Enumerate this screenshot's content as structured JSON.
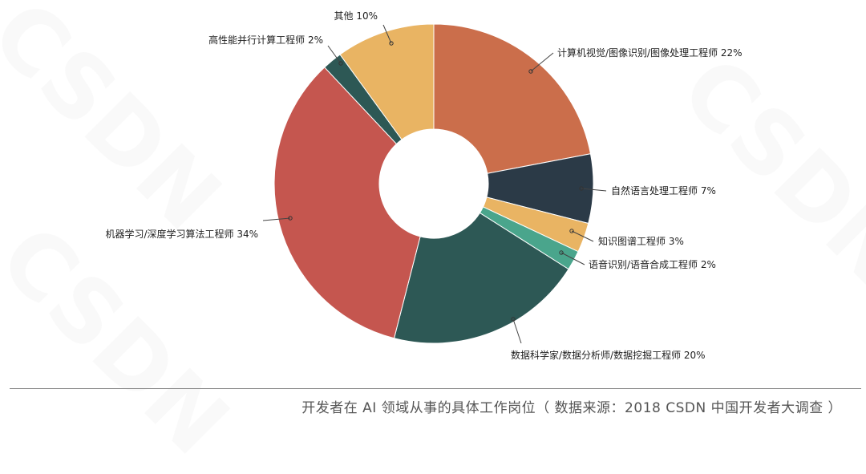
{
  "chart_data": {
    "type": "pie",
    "categories": [
      "计算机视觉/图像识别/图像处理工程师",
      "自然语言处理工程师",
      "知识图谱工程师",
      "语音识别/语音合成工程师",
      "数据科学家/数据分析师/数据挖掘工程师",
      "机器学习/深度学习算法工程师",
      "高性能并行计算工程师",
      "其他"
    ],
    "values": [
      22,
      7,
      3,
      2,
      20,
      34,
      2,
      10
    ],
    "colors": [
      "#cb6e4b",
      "#2b3a47",
      "#e9b463",
      "#4aa58c",
      "#2d5855",
      "#c5564f",
      "#2d5855",
      "#e9b463"
    ],
    "labels": [
      "计算机视觉/图像识别/图像处理工程师  22%",
      "自然语言处理工程师  7%",
      "知识图谱工程师  3%",
      "语音识别/语音合成工程师  2%",
      "数据科学家/数据分析师/数据挖掘工程师  20%",
      "机器学习/深度学习算法工程师  34%",
      "高性能并行计算工程师  2%",
      "其他  10%"
    ],
    "donut": true
  },
  "caption": "开发者在 AI 领域从事的具体工作岗位（ 数据来源：2018 CSDN 中国开发者大调查 ）",
  "watermark": "CSDN"
}
